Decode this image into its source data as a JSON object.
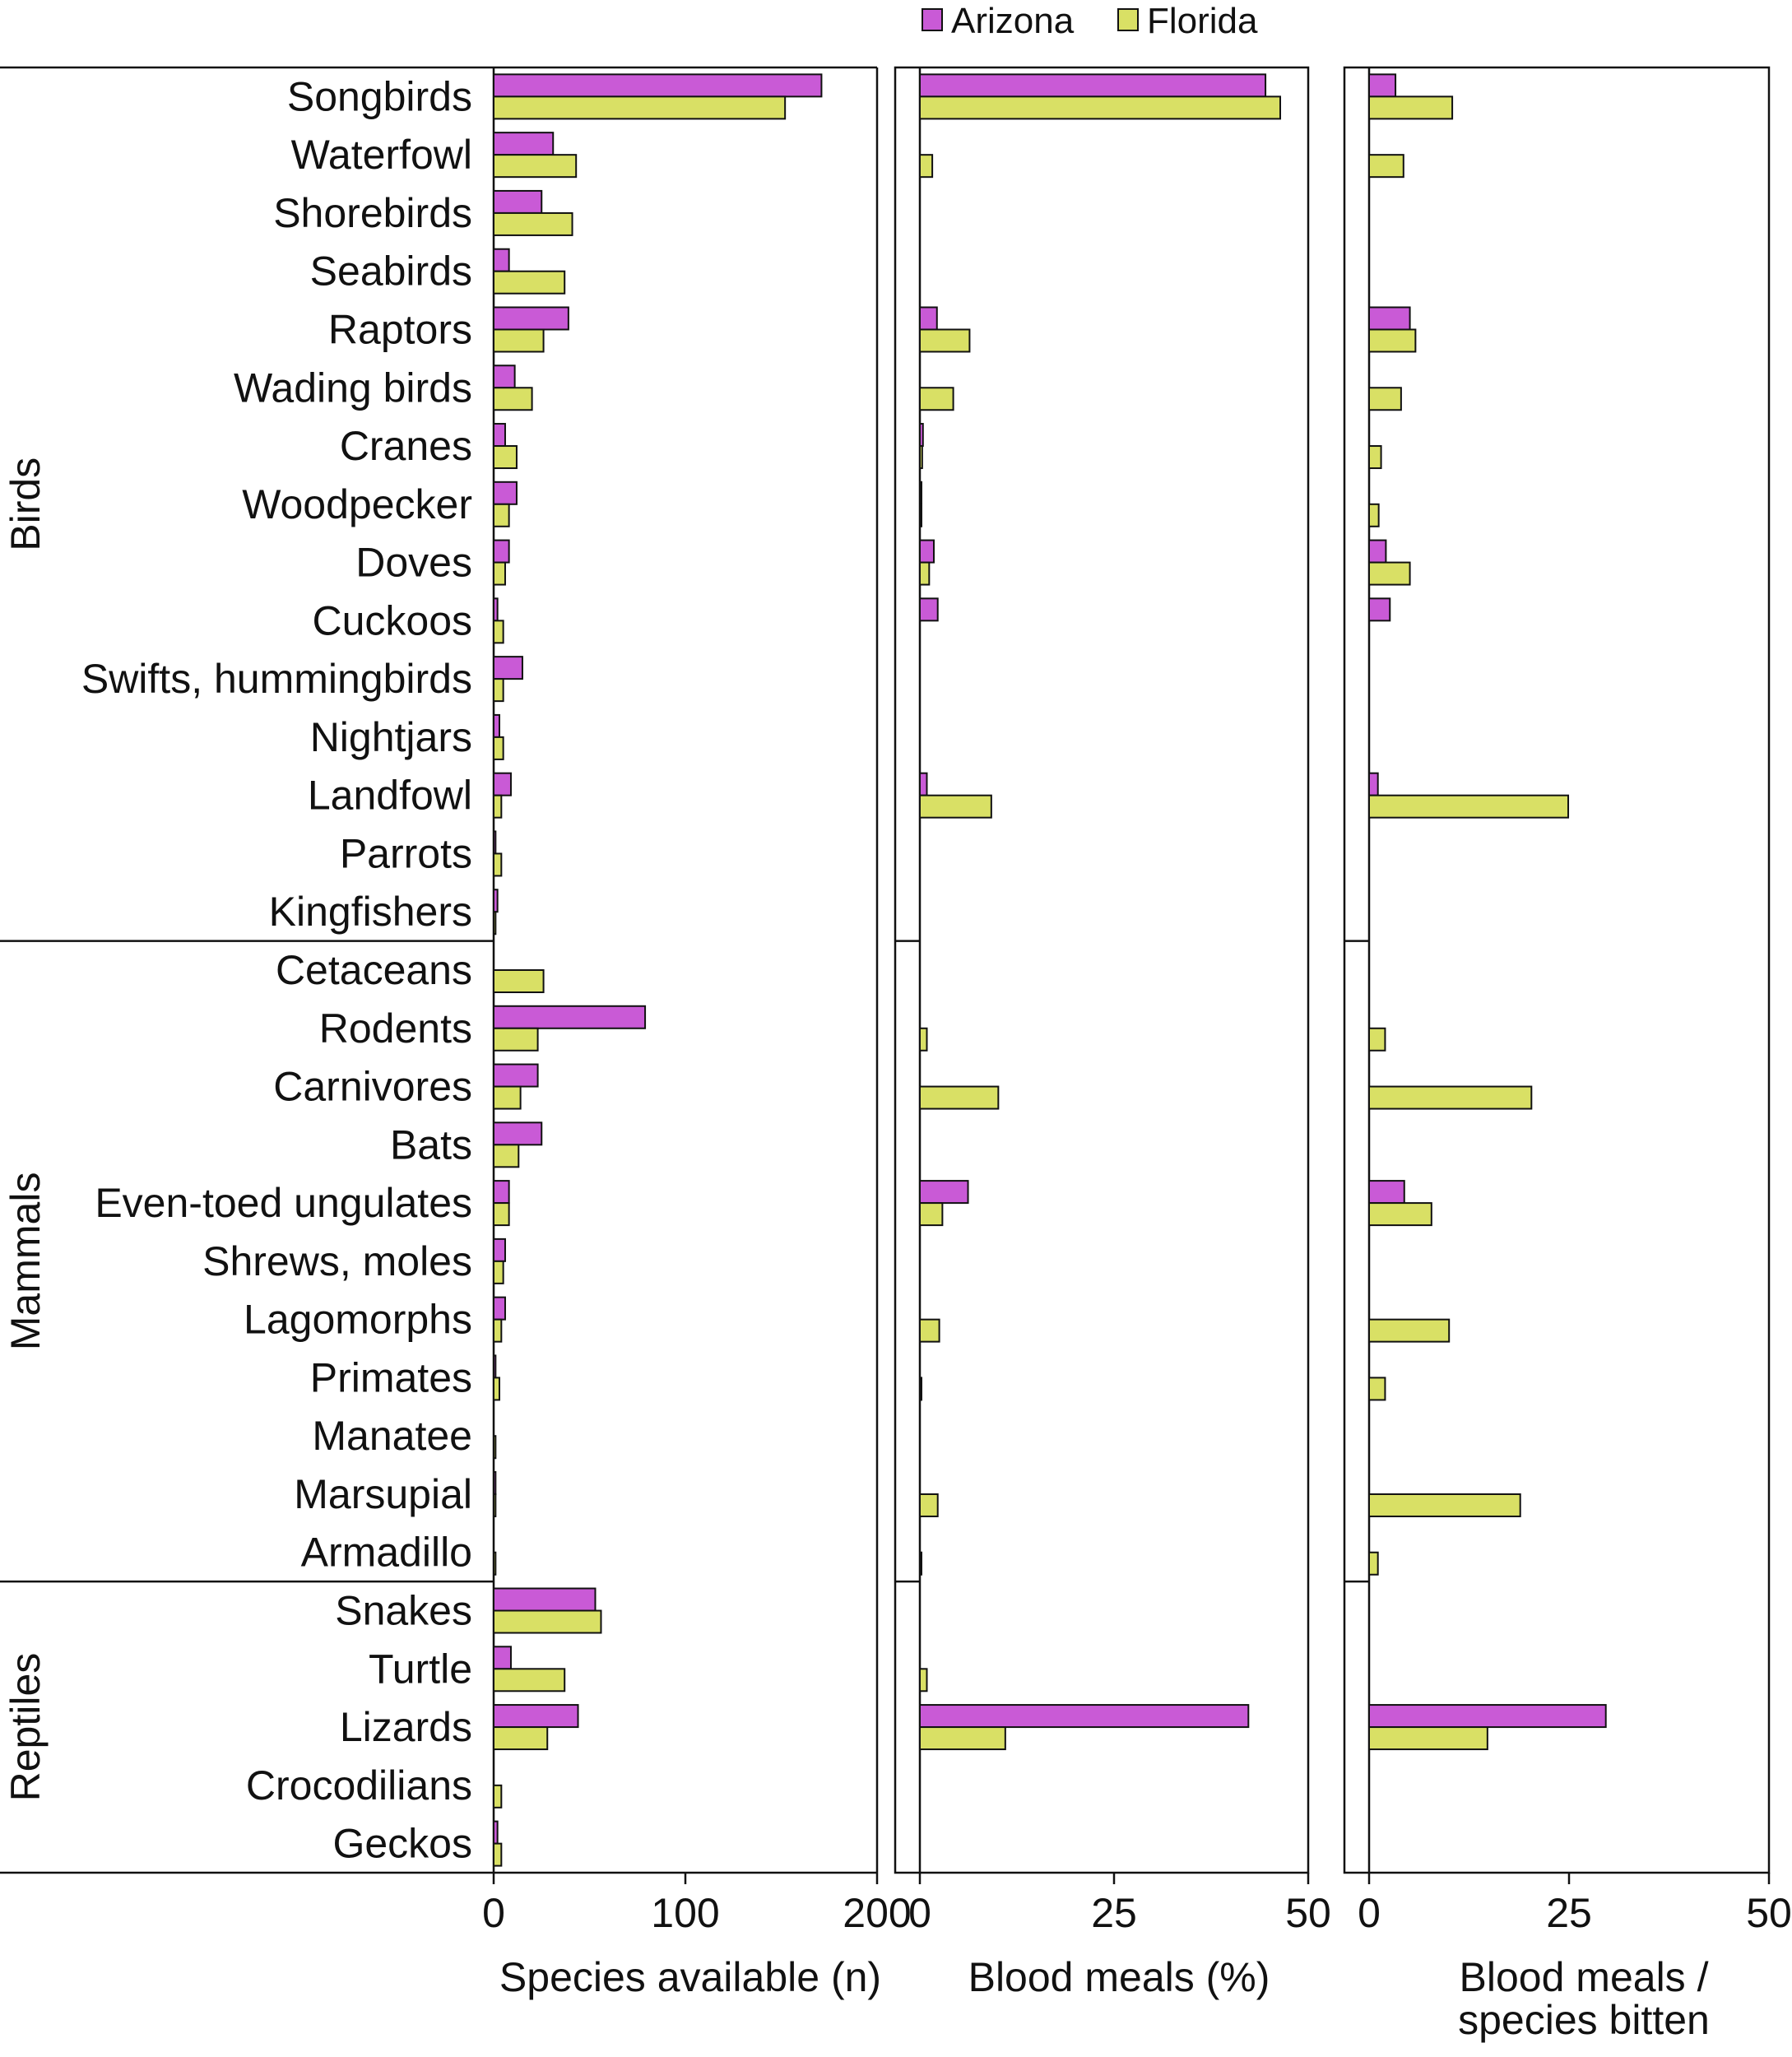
{
  "chart_data": {
    "type": "bar",
    "orientation": "horizontal",
    "legend": {
      "position": "top-center",
      "entries": [
        {
          "name": "Arizona",
          "color": "#c95ad6"
        },
        {
          "name": "Florida",
          "color": "#d9e065"
        }
      ]
    },
    "groups": [
      {
        "name": "Birds",
        "categories": [
          "Songbirds",
          "Waterfowl",
          "Shorebirds",
          "Seabirds",
          "Raptors",
          "Wading birds",
          "Cranes",
          "Woodpecker",
          "Doves",
          "Cuckoos",
          "Swifts, hummingbirds",
          "Nightjars",
          "Landfowl",
          "Parrots",
          "Kingfishers"
        ]
      },
      {
        "name": "Mammals",
        "categories": [
          "Cetaceans",
          "Rodents",
          "Carnivores",
          "Bats",
          "Even-toed ungulates",
          "Shrews, moles",
          "Lagomorphs",
          "Primates",
          "Manatee",
          "Marsupial",
          "Armadillo"
        ]
      },
      {
        "name": "Reptiles",
        "categories": [
          "Snakes",
          "Turtle",
          "Lizards",
          "Crocodilians",
          "Geckos"
        ]
      }
    ],
    "categories": [
      "Songbirds",
      "Waterfowl",
      "Shorebirds",
      "Seabirds",
      "Raptors",
      "Wading birds",
      "Cranes",
      "Woodpecker",
      "Doves",
      "Cuckoos",
      "Swifts, hummingbirds",
      "Nightjars",
      "Landfowl",
      "Parrots",
      "Kingfishers",
      "Cetaceans",
      "Rodents",
      "Carnivores",
      "Bats",
      "Even-toed ungulates",
      "Shrews, moles",
      "Lagomorphs",
      "Primates",
      "Manatee",
      "Marsupial",
      "Armadillo",
      "Snakes",
      "Turtle",
      "Lizards",
      "Crocodilians",
      "Geckos"
    ],
    "panels": [
      {
        "xlabel": "Species available (n)",
        "xlim": [
          0,
          200
        ],
        "ticks": [
          0,
          100,
          200
        ],
        "series": [
          {
            "name": "Arizona",
            "values": [
              171,
              31,
              25,
              8,
              39,
              11,
              6,
              12,
              8,
              2,
              15,
              3,
              9,
              1,
              2,
              0,
              79,
              23,
              25,
              8,
              6,
              6,
              1,
              0,
              1,
              0,
              53,
              9,
              44,
              0,
              2
            ]
          },
          {
            "name": "Florida",
            "values": [
              152,
              43,
              41,
              37,
              26,
              20,
              12,
              8,
              6,
              5,
              5,
              5,
              4,
              4,
              1,
              26,
              23,
              14,
              13,
              8,
              5,
              4,
              3,
              1,
              1,
              1,
              56,
              37,
              28,
              4,
              4
            ]
          }
        ]
      },
      {
        "xlabel": "Blood meals (%)",
        "xlim": [
          0,
          50
        ],
        "ticks": [
          0,
          25,
          50
        ],
        "series": [
          {
            "name": "Arizona",
            "values": [
              44.5,
              0,
              0,
              0,
              2.2,
              0,
              0.4,
              0.2,
              1.8,
              2.3,
              0,
              0,
              0.9,
              0,
              0,
              0,
              0,
              0,
              0,
              6.2,
              0,
              0,
              0,
              0,
              0,
              0,
              0,
              0,
              42.3,
              0,
              0
            ]
          },
          {
            "name": "Florida",
            "values": [
              46.4,
              1.6,
              0,
              0,
              6.4,
              4.3,
              0.3,
              0.2,
              1.2,
              0,
              0,
              0,
              9.2,
              0,
              0,
              0,
              0.9,
              10.1,
              0,
              2.9,
              0,
              2.5,
              0.2,
              0,
              2.3,
              0.2,
              0,
              0.9,
              11,
              0,
              0
            ]
          }
        ]
      },
      {
        "xlabel_lines": [
          "Blood meals /",
          "species bitten"
        ],
        "xlim": [
          0,
          50
        ],
        "ticks": [
          0,
          25,
          50
        ],
        "series": [
          {
            "name": "Arizona",
            "values": [
              3.3,
              0,
              0,
              0,
              5.1,
              0,
              0,
              0,
              2.1,
              2.6,
              0,
              0,
              1.1,
              0,
              0,
              0,
              0,
              0,
              0,
              4.4,
              0,
              0,
              0,
              0,
              0,
              0,
              0,
              0,
              29.6,
              0,
              0
            ]
          },
          {
            "name": "Florida",
            "values": [
              10.4,
              4.3,
              0,
              0,
              5.8,
              4.0,
              1.5,
              1.2,
              5.1,
              0,
              0,
              0,
              24.9,
              0,
              0,
              0,
              2.0,
              20.3,
              0,
              7.8,
              0,
              10,
              2.0,
              0,
              18.9,
              1.1,
              0,
              0,
              14.8,
              0,
              0
            ]
          }
        ]
      }
    ]
  }
}
